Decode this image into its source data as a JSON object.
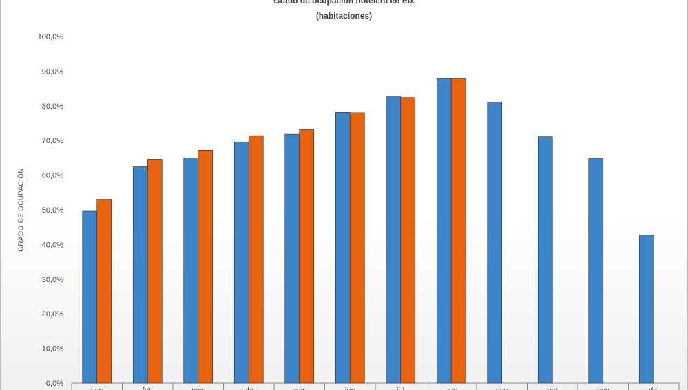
{
  "chart_data": {
    "type": "bar",
    "title": "Grado de ocupación hotelera en Elx",
    "subtitle": "(habitaciones)",
    "xlabel": "",
    "ylabel": "GRADO DE OCUPACIÓN",
    "ylim": [
      0,
      100
    ],
    "y_ticks": [
      "0,0%",
      "10,0%",
      "20,0%",
      "30,0%",
      "40,0%",
      "50,0%",
      "60,0%",
      "70,0%",
      "80,0%",
      "90,0%",
      "100,0%"
    ],
    "categories": [
      "ene",
      "feb",
      "mar",
      "abr",
      "may",
      "jun",
      "jul",
      "ago",
      "sep",
      "oct",
      "nov",
      "dic"
    ],
    "series": [
      {
        "values": [
          49.6,
          62.4,
          65.0,
          69.6,
          71.8,
          78.1,
          82.8,
          87.9,
          81.0,
          71.1,
          64.9,
          42.7
        ],
        "color": "#3d85c8"
      },
      {
        "values": [
          53.0,
          64.6,
          67.2,
          71.4,
          73.2,
          78.0,
          82.4,
          87.9,
          null,
          null,
          null,
          null
        ],
        "color": "#e8630f"
      }
    ],
    "grid": false,
    "legend": "none"
  }
}
